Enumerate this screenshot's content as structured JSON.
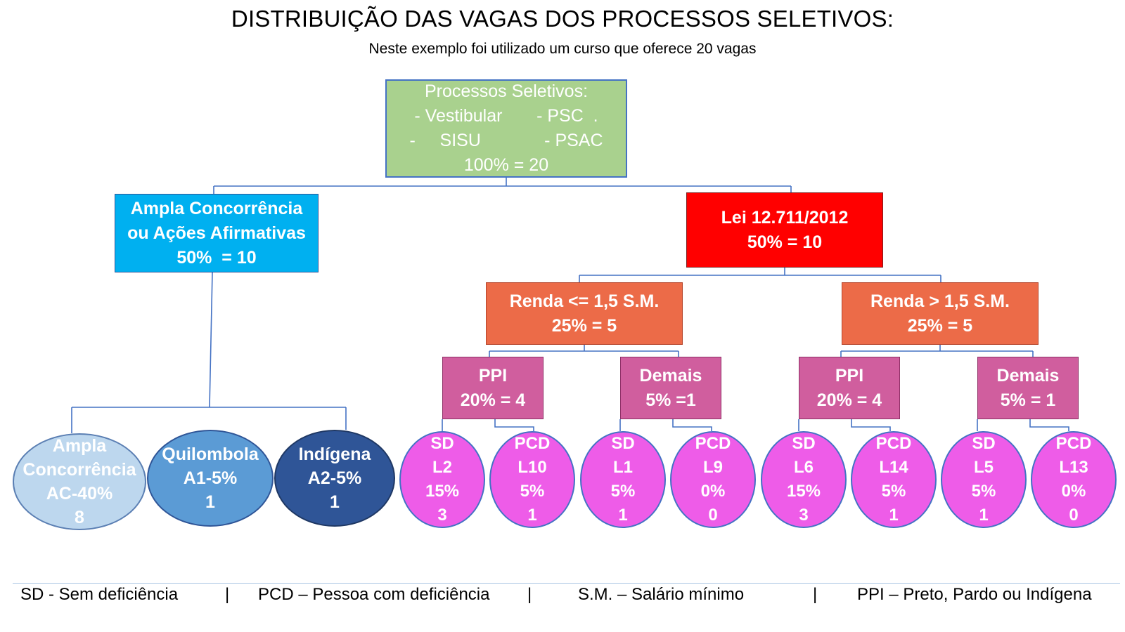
{
  "title": "DISTRIBUIÇÃO DAS VAGAS DOS PROCESSOS SELETIVOS:",
  "subtitle": "Neste exemplo foi utilizado um curso que oferece 20 vagas",
  "colors": {
    "root_fill": "#a9d18e",
    "ac_fill": "#00b0f0",
    "lei_fill": "#ff0000",
    "renda_fill": "#ec6b48",
    "group_fill": "#d05e9e",
    "quota_fill": "#ee5ce8",
    "ac_ellipse": "#bdd7ee",
    "quilombola_ellipse": "#5b9bd5",
    "indigena_ellipse": "#2f5597",
    "connector": "#4472c4"
  },
  "root": {
    "lines": [
      "Processos Seletivos:",
      "- Vestibular       - PSC  .",
      "-     SISU             - PSAC",
      "100% = 20"
    ]
  },
  "ampla": {
    "lines": [
      "Ampla Concorrência",
      "ou Ações Afirmativas",
      "50%  = 10"
    ],
    "children": [
      {
        "lines": [
          "Ampla",
          "Concorrência",
          "AC-40%",
          "8"
        ]
      },
      {
        "lines": [
          "Quilombola",
          "A1-5%",
          "1"
        ]
      },
      {
        "lines": [
          "Indígena",
          "A2-5%",
          "1"
        ]
      }
    ]
  },
  "lei": {
    "lines": [
      "Lei 12.711/2012",
      "50% = 10"
    ],
    "renda": [
      {
        "lines": [
          "Renda <= 1,5 S.M.",
          "25% = 5"
        ],
        "groups": [
          {
            "lines": [
              "PPI",
              "20% = 4"
            ],
            "quotas": [
              {
                "lines": [
                  "SD",
                  "L2",
                  "15%",
                  "3"
                ]
              },
              {
                "lines": [
                  "PCD",
                  "L10",
                  "5%",
                  "1"
                ]
              }
            ]
          },
          {
            "lines": [
              "Demais",
              "5% =1"
            ],
            "quotas": [
              {
                "lines": [
                  "SD",
                  "L1",
                  "5%",
                  "1"
                ]
              },
              {
                "lines": [
                  "PCD",
                  "L9",
                  "0%",
                  "0"
                ]
              }
            ]
          }
        ]
      },
      {
        "lines": [
          "Renda > 1,5 S.M.",
          "25% = 5"
        ],
        "groups": [
          {
            "lines": [
              "PPI",
              "20% = 4"
            ],
            "quotas": [
              {
                "lines": [
                  "SD",
                  "L6",
                  "15%",
                  "3"
                ]
              },
              {
                "lines": [
                  "PCD",
                  "L14",
                  "5%",
                  "1"
                ]
              }
            ]
          },
          {
            "lines": [
              "Demais",
              "5% = 1"
            ],
            "quotas": [
              {
                "lines": [
                  "SD",
                  "L5",
                  "5%",
                  "1"
                ]
              },
              {
                "lines": [
                  "PCD",
                  "L13",
                  "0%",
                  "0"
                ]
              }
            ]
          }
        ]
      }
    ]
  },
  "legend": {
    "sd": "SD - Sem deficiência",
    "sep1": "|",
    "pcd": "PCD – Pessoa com deficiência",
    "sep2": "|",
    "sm": "S.M. – Salário mínimo",
    "sep3": "|",
    "ppi": "PPI – Preto, Pardo ou Indígena"
  }
}
